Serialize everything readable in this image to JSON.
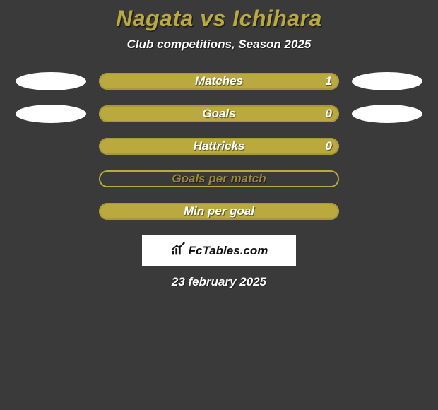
{
  "title": "Nagata vs Ichihara",
  "subtitle": "Club competitions, Season 2025",
  "colors": {
    "accent": "#b9a93f",
    "accent_dark": "#a89838",
    "label_white": "#ffffff",
    "label_dark": "#88802f",
    "ellipse": "#ffffff",
    "background": "#3a3a3a"
  },
  "stats": [
    {
      "label": "Matches",
      "value": "1",
      "fill_pct": 100,
      "show_value": true,
      "fill_color": "#b9a93f",
      "border_color": "#a89838",
      "label_color": "#ffffff",
      "left_ellipse": true,
      "right_ellipse": true
    },
    {
      "label": "Goals",
      "value": "0",
      "fill_pct": 100,
      "show_value": true,
      "fill_color": "#b9a93f",
      "border_color": "#a89838",
      "label_color": "#ffffff",
      "left_ellipse": true,
      "right_ellipse": true
    },
    {
      "label": "Hattricks",
      "value": "0",
      "fill_pct": 100,
      "show_value": true,
      "fill_color": "#b9a93f",
      "border_color": "#a89838",
      "label_color": "#ffffff",
      "left_ellipse": false,
      "right_ellipse": false
    },
    {
      "label": "Goals per match",
      "value": "",
      "fill_pct": 0,
      "show_value": false,
      "fill_color": "#b9a93f",
      "border_color": "#b9a93f",
      "label_color": "#9a8c35",
      "left_ellipse": false,
      "right_ellipse": false
    },
    {
      "label": "Min per goal",
      "value": "",
      "fill_pct": 100,
      "show_value": false,
      "fill_color": "#b9a93f",
      "border_color": "#a89838",
      "label_color": "#ffffff",
      "left_ellipse": false,
      "right_ellipse": false
    }
  ],
  "footer": {
    "brand_text": "FcTables.com",
    "date": "23 february 2025"
  }
}
